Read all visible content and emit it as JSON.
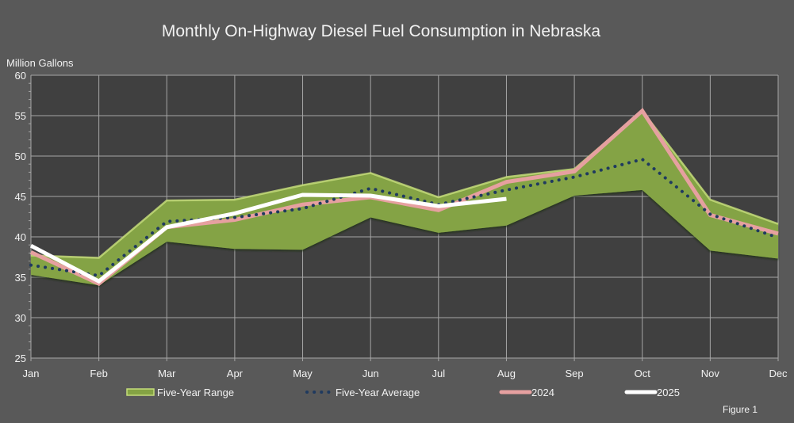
{
  "figure_label": "Figure 1",
  "colors": {
    "background": "#595959",
    "plot_background": "#404040",
    "grid": "#a6a6a6",
    "range_fill": "#84a344",
    "range_edge": "#c4dc7a",
    "average": "#1f3a5f",
    "y2024": "#e6a0a0",
    "y2025": "#ffffff"
  },
  "chart_data": {
    "type": "line",
    "title": "Monthly On-Highway Diesel Fuel Consumption in Nebraska",
    "xlabel": "",
    "ylabel": "Million Gallons",
    "ylim": [
      25,
      60
    ],
    "yticks": [
      25,
      30,
      35,
      40,
      45,
      50,
      55,
      60
    ],
    "grid": true,
    "legend_position": "bottom",
    "categories": [
      "Jan",
      "Feb",
      "Mar",
      "Apr",
      "May",
      "Jun",
      "Jul",
      "Aug",
      "Sep",
      "Oct",
      "Nov",
      "Dec"
    ],
    "range": {
      "name": "Five-Year Range",
      "upper": [
        37.7,
        37.4,
        44.5,
        44.6,
        46.4,
        47.9,
        44.9,
        47.4,
        48.4,
        55.6,
        44.6,
        41.6
      ],
      "lower": [
        35.3,
        34.0,
        39.4,
        38.5,
        38.4,
        42.4,
        40.5,
        41.4,
        45.1,
        45.8,
        38.3,
        37.3
      ]
    },
    "series": [
      {
        "name": "Five-Year Average",
        "style": "dotted",
        "values": [
          36.5,
          35.2,
          41.9,
          42.4,
          43.5,
          46.0,
          44.0,
          45.8,
          47.4,
          49.6,
          42.8,
          39.9
        ]
      },
      {
        "name": "2024",
        "style": "solid",
        "values": [
          38.1,
          34.2,
          41.2,
          42.1,
          44.0,
          44.9,
          43.3,
          46.8,
          48.1,
          55.6,
          42.7,
          40.4
        ]
      },
      {
        "name": "2025",
        "style": "solid",
        "values": [
          38.9,
          34.5,
          41.2,
          42.9,
          45.2,
          45.1,
          43.8,
          44.7,
          null,
          null,
          null,
          null
        ]
      }
    ]
  }
}
